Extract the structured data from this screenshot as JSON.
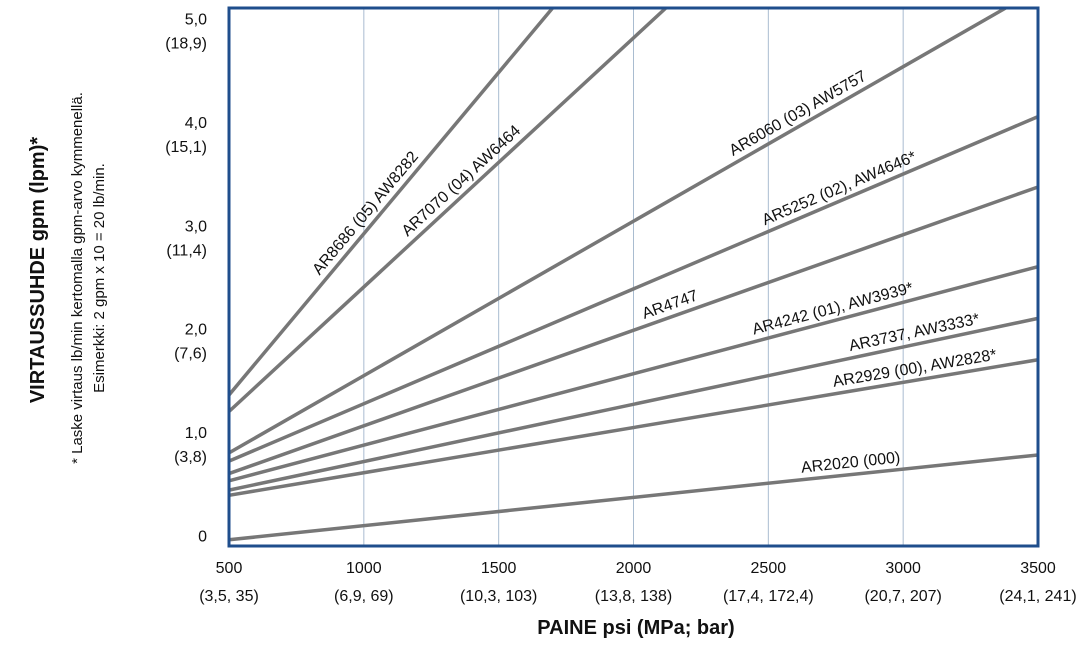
{
  "chart_data": {
    "type": "line",
    "xlabel": "PAINE psi (MPa; bar)",
    "ylabel": "VIRTAUSSUHDE gpm (lpm)*",
    "footnote": [
      "* Laske virtaus lb/min kertomalla gpm-arvo kymmenellä.",
      "Esimerkki: 2 gpm x 10 = 20 lb/min."
    ],
    "xlim": [
      500,
      3500
    ],
    "ylim": [
      -0.1,
      5.1
    ],
    "x_ticks": [
      {
        "value": 500,
        "label": "500",
        "sublabel": "(3,5, 35)"
      },
      {
        "value": 1000,
        "label": "1000",
        "sublabel": "(6,9, 69)"
      },
      {
        "value": 1500,
        "label": "1500",
        "sublabel": "(10,3, 103)"
      },
      {
        "value": 2000,
        "label": "2000",
        "sublabel": "(13,8, 138)"
      },
      {
        "value": 2500,
        "label": "2500",
        "sublabel": "(17,4, 172,4)"
      },
      {
        "value": 3000,
        "label": "3000",
        "sublabel": "(20,7, 207)"
      },
      {
        "value": 3500,
        "label": "3500",
        "sublabel": "(24,1, 241)"
      }
    ],
    "y_ticks": [
      {
        "value": 0,
        "label": "0",
        "sublabel": ""
      },
      {
        "value": 1,
        "label": "1,0",
        "sublabel": "(3,8)"
      },
      {
        "value": 2,
        "label": "2,0",
        "sublabel": "(7,6)"
      },
      {
        "value": 3,
        "label": "3,0",
        "sublabel": "(11,4)"
      },
      {
        "value": 4,
        "label": "4,0",
        "sublabel": "(15,1)"
      },
      {
        "value": 5,
        "label": "5,0",
        "sublabel": "(18,9)"
      }
    ],
    "grid": true,
    "line_color": "#777777",
    "frame_color": "#1f4e8c",
    "grid_color": "#a9bcd0",
    "series": [
      {
        "name": "AR8686 (05) AW8282",
        "x": [
          500,
          1700
        ],
        "y": [
          1.36,
          5.1
        ],
        "label_at": 0.45
      },
      {
        "name": "AR7070 (04) AW6464",
        "x": [
          500,
          2120
        ],
        "y": [
          1.2,
          5.1
        ],
        "label_at": 0.55
      },
      {
        "name": "AR6060 (03) AW5757",
        "x": [
          500,
          3380
        ],
        "y": [
          0.8,
          5.1
        ],
        "label_at": 0.74
      },
      {
        "name": "AR5252 (02), AW4646*",
        "x": [
          500,
          3500
        ],
        "y": [
          0.72,
          4.05
        ],
        "label_at": 0.76
      },
      {
        "name": "AR4747",
        "x": [
          500,
          3500
        ],
        "y": [
          0.6,
          3.37
        ],
        "label_at": 0.55
      },
      {
        "name": "AR4242 (01), AW3939*",
        "x": [
          500,
          3500
        ],
        "y": [
          0.53,
          2.6
        ],
        "label_at": 0.75
      },
      {
        "name": "AR3737, AW3333*",
        "x": [
          500,
          3500
        ],
        "y": [
          0.44,
          2.1
        ],
        "label_at": 0.85
      },
      {
        "name": "AR2929 (00), AW2828*",
        "x": [
          500,
          3500
        ],
        "y": [
          0.39,
          1.7
        ],
        "label_at": 0.85
      },
      {
        "name": "AR2020 (000)",
        "x": [
          500,
          3500
        ],
        "y": [
          -0.04,
          0.78
        ],
        "label_at": 0.77
      }
    ]
  }
}
